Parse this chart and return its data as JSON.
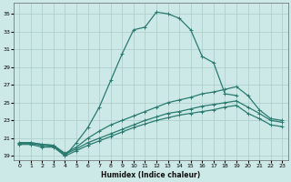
{
  "title": "",
  "xlabel": "Humidex (Indice chaleur)",
  "ylabel": "",
  "bg_color": "#cce9e7",
  "grid_color": "#aaccca",
  "line_color": "#2a7a70",
  "xlim": [
    -0.5,
    23.5
  ],
  "ylim": [
    18.5,
    36.2
  ],
  "xticks": [
    0,
    1,
    2,
    3,
    4,
    5,
    6,
    7,
    8,
    9,
    10,
    11,
    12,
    13,
    14,
    15,
    16,
    17,
    18,
    19,
    20,
    21,
    22,
    23
  ],
  "yticks": [
    19,
    21,
    23,
    25,
    27,
    29,
    31,
    33,
    35
  ],
  "curve1_x": [
    0,
    1,
    2,
    3,
    4,
    5,
    6,
    7,
    8,
    9,
    10,
    11,
    12,
    13,
    14,
    15,
    16,
    17,
    18,
    19
  ],
  "curve1_y": [
    20.5,
    20.5,
    20.3,
    20.2,
    19.0,
    20.5,
    22.2,
    24.5,
    27.5,
    30.5,
    33.2,
    33.5,
    35.2,
    35.0,
    34.5,
    33.2,
    30.2,
    29.5,
    26.0,
    25.8
  ],
  "curve2_x": [
    0,
    1,
    2,
    3,
    4,
    5,
    6,
    7,
    8,
    9,
    10,
    11,
    12,
    13,
    14,
    15,
    16,
    17,
    18,
    19,
    20,
    21,
    22,
    23
  ],
  "curve2_y": [
    20.5,
    20.5,
    20.3,
    20.2,
    19.3,
    20.0,
    21.0,
    21.8,
    22.5,
    23.0,
    23.5,
    24.0,
    24.5,
    25.0,
    25.3,
    25.6,
    26.0,
    26.2,
    26.5,
    26.8,
    25.8,
    24.2,
    23.2,
    23.0
  ],
  "curve3_x": [
    0,
    1,
    2,
    3,
    4,
    5,
    6,
    7,
    8,
    9,
    10,
    11,
    12,
    13,
    14,
    15,
    16,
    17,
    18,
    19,
    20,
    21,
    22,
    23
  ],
  "curve3_y": [
    20.4,
    20.4,
    20.2,
    20.1,
    19.2,
    19.8,
    20.5,
    21.0,
    21.5,
    22.0,
    22.5,
    23.0,
    23.4,
    23.8,
    24.0,
    24.3,
    24.6,
    24.8,
    25.0,
    25.2,
    24.5,
    23.8,
    23.0,
    22.8
  ],
  "curve4_x": [
    0,
    1,
    2,
    3,
    4,
    5,
    6,
    7,
    8,
    9,
    10,
    11,
    12,
    13,
    14,
    15,
    16,
    17,
    18,
    19,
    20,
    21,
    22,
    23
  ],
  "curve4_y": [
    20.3,
    20.3,
    20.0,
    20.0,
    19.0,
    19.6,
    20.2,
    20.7,
    21.2,
    21.7,
    22.2,
    22.6,
    23.0,
    23.3,
    23.6,
    23.8,
    24.0,
    24.2,
    24.5,
    24.7,
    23.8,
    23.2,
    22.5,
    22.3
  ]
}
